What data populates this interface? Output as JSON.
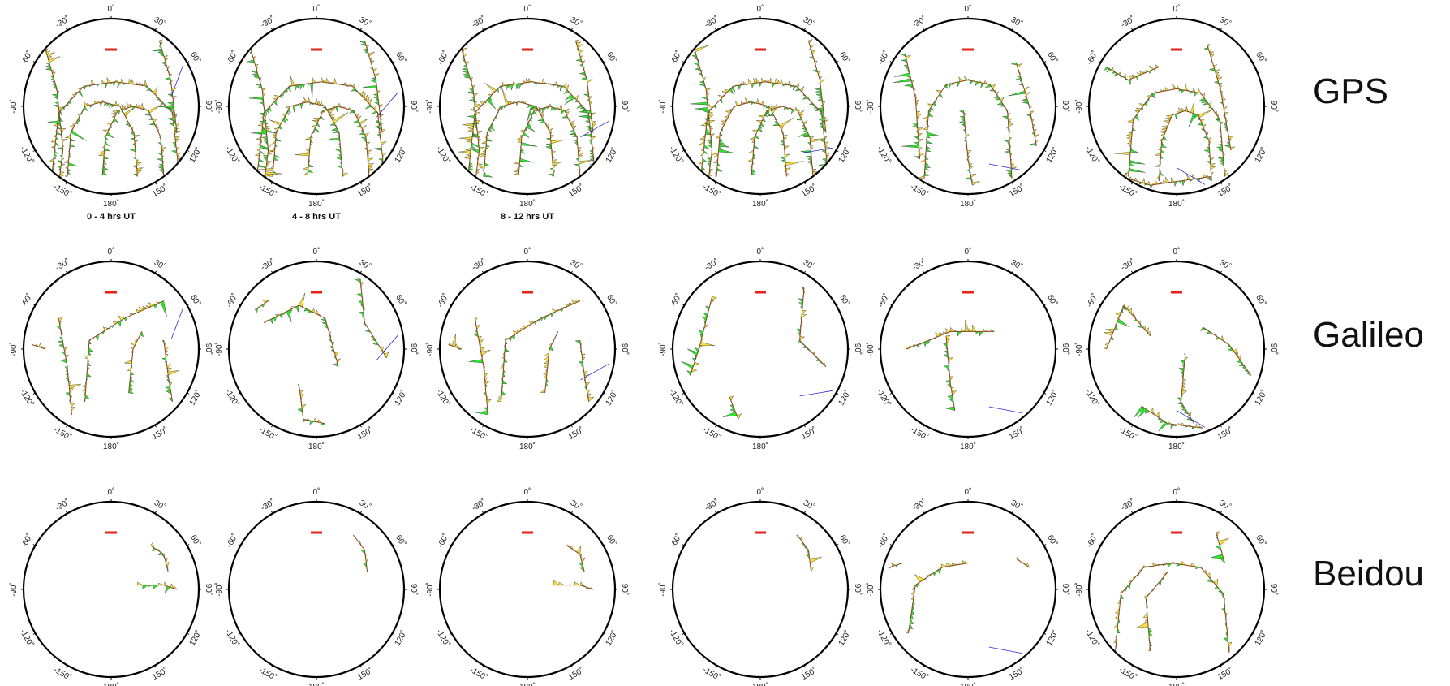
{
  "az_tick_labels": [
    "0˚",
    "30˚",
    "60˚",
    "90˚",
    "120˚",
    "150˚",
    "180˚",
    "-150˚",
    "-120˚",
    "-90˚",
    "-60˚",
    "-30˚"
  ],
  "time_labels": [
    "0 - 4 hrs UT",
    "4 - 8 hrs UT",
    "8 - 12 hrs UT"
  ],
  "systems": [
    {
      "name": "GPS",
      "density": "high",
      "tracks": [
        "arch",
        "arch",
        "arch",
        "arch",
        "verticals",
        "fan"
      ]
    },
    {
      "name": "Galileo",
      "density": "medium",
      "tracks": [
        "w",
        "arcs",
        "w",
        "sparse",
        "cross",
        "mixed"
      ]
    },
    {
      "name": "Beidou",
      "density": "low",
      "tracks": [
        "ne-small",
        "ne-curve",
        "ne-small",
        "ne-curve",
        "w-arc",
        "arches"
      ]
    }
  ],
  "colors": {
    "fill_pos": "#2ee82e",
    "fill_neg": "#f7e13a",
    "track": "#8a4a1e",
    "marker": "#e8201a",
    "blue_track": "#2a2ad8",
    "frame": "#000000"
  }
}
